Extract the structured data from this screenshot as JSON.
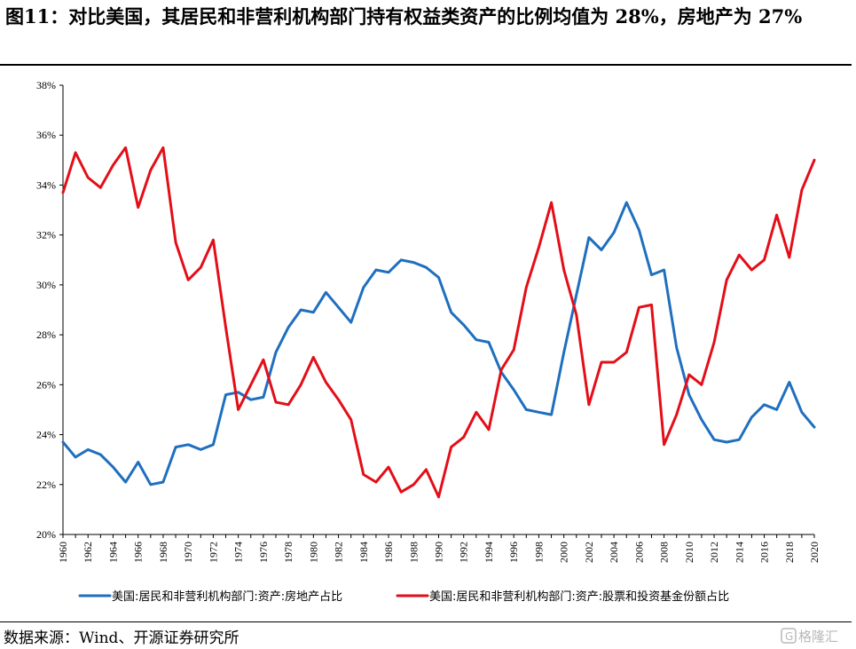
{
  "header": {
    "title": "图11：对比美国，其居民和非营利机构部门持有权益类资产的比例均值为 28%，房地产为 27%"
  },
  "footer": {
    "source": "数据来源：Wind、开源证券研究所",
    "watermark": "格隆汇"
  },
  "colors": {
    "real_estate": "#1f6fbf",
    "equity": "#e30e18",
    "axis": "#000000"
  },
  "chart_data": {
    "type": "line",
    "title": "",
    "xlabel": "",
    "ylabel": "",
    "ylim": [
      20,
      38
    ],
    "y_ticks": [
      "20%",
      "22%",
      "24%",
      "26%",
      "28%",
      "30%",
      "32%",
      "34%",
      "36%",
      "38%"
    ],
    "x": [
      1960,
      1961,
      1962,
      1963,
      1964,
      1965,
      1966,
      1967,
      1968,
      1969,
      1970,
      1971,
      1972,
      1973,
      1974,
      1975,
      1976,
      1977,
      1978,
      1979,
      1980,
      1981,
      1982,
      1983,
      1984,
      1985,
      1986,
      1987,
      1988,
      1989,
      1990,
      1991,
      1992,
      1993,
      1994,
      1995,
      1996,
      1997,
      1998,
      1999,
      2000,
      2001,
      2002,
      2003,
      2004,
      2005,
      2006,
      2007,
      2008,
      2009,
      2010,
      2011,
      2012,
      2013,
      2014,
      2015,
      2016,
      2017,
      2018,
      2019,
      2020
    ],
    "x_ticks": [
      "1960",
      "1962",
      "1964",
      "1966",
      "1968",
      "1970",
      "1972",
      "1974",
      "1976",
      "1978",
      "1980",
      "1982",
      "1984",
      "1986",
      "1988",
      "1990",
      "1992",
      "1994",
      "1996",
      "1998",
      "2000",
      "2002",
      "2004",
      "2006",
      "2008",
      "2010",
      "2012",
      "2014",
      "2016",
      "2018",
      "2020"
    ],
    "legend_position": "bottom",
    "series": [
      {
        "name": "美国:居民和非营利机构部门:资产:房地产占比",
        "color": "#1f6fbf",
        "values": [
          23.7,
          23.1,
          23.4,
          23.2,
          22.7,
          22.1,
          22.9,
          22.0,
          22.1,
          23.5,
          23.6,
          23.4,
          23.6,
          25.6,
          25.7,
          25.4,
          25.5,
          27.3,
          28.3,
          29.0,
          28.9,
          29.7,
          29.1,
          28.5,
          29.9,
          30.6,
          30.5,
          31.0,
          30.9,
          30.7,
          30.3,
          28.9,
          28.4,
          27.8,
          27.7,
          26.5,
          25.8,
          25.0,
          24.9,
          24.8,
          27.3,
          29.6,
          31.9,
          31.4,
          32.1,
          33.3,
          32.2,
          30.4,
          30.6,
          27.5,
          25.6,
          24.6,
          23.8,
          23.7,
          23.8,
          24.7,
          25.2,
          25.0,
          26.1,
          24.9,
          24.3
        ]
      },
      {
        "name": "美国:居民和非营利机构部门:资产:股票和投资基金份额占比",
        "color": "#e30e18",
        "values": [
          33.7,
          35.3,
          34.3,
          33.9,
          34.8,
          35.5,
          33.1,
          34.6,
          35.5,
          31.7,
          30.2,
          30.7,
          31.8,
          28.3,
          25.0,
          26.0,
          27.0,
          25.3,
          25.2,
          26.0,
          27.1,
          26.1,
          25.4,
          24.6,
          22.4,
          22.1,
          22.7,
          21.7,
          22.0,
          22.6,
          21.5,
          23.5,
          23.9,
          24.9,
          24.2,
          26.6,
          27.4,
          29.9,
          31.5,
          33.3,
          30.6,
          28.8,
          25.2,
          26.9,
          26.9,
          27.3,
          29.1,
          29.2,
          23.6,
          24.8,
          26.4,
          26.0,
          27.7,
          30.2,
          31.2,
          30.6,
          31.0,
          32.8,
          31.1,
          33.8,
          35.0
        ]
      }
    ]
  }
}
